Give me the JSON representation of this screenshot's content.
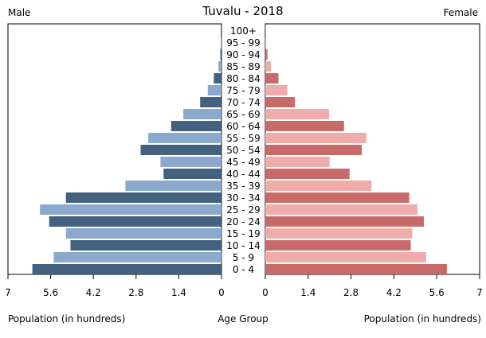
{
  "chart_data": {
    "type": "bar",
    "title": "Tuvalu - 2018",
    "male_label": "Male",
    "female_label": "Female",
    "center_label": "Age Group",
    "left_xlabel": "Population (in hundreds)",
    "right_xlabel": "Population (in hundreds)",
    "xlim": [
      0,
      7
    ],
    "ticks": [
      "7",
      "5.6",
      "4.2",
      "2.8",
      "1.4",
      "0",
      "0",
      "1.4",
      "2.8",
      "4.2",
      "5.6",
      "7"
    ],
    "tick_values": [
      7,
      5.6,
      4.2,
      2.8,
      1.4,
      0,
      0,
      1.4,
      2.8,
      4.2,
      5.6,
      7
    ],
    "categories": [
      "100+",
      "95 - 99",
      "90 - 94",
      "85 - 89",
      "80 - 84",
      "75 - 79",
      "70 - 74",
      "65 - 69",
      "60 - 64",
      "55 - 59",
      "50 - 54",
      "45 - 49",
      "40 - 44",
      "35 - 39",
      "30 - 34",
      "25 - 29",
      "20 - 24",
      "15 - 19",
      "10 - 14",
      "5 - 9",
      "0 - 4"
    ],
    "series": [
      {
        "name": "Male",
        "side": "left",
        "values": [
          0.02,
          0.02,
          0.04,
          0.1,
          0.25,
          0.45,
          0.7,
          1.25,
          1.65,
          2.4,
          2.65,
          2.0,
          1.9,
          3.15,
          5.1,
          5.95,
          5.65,
          5.1,
          4.95,
          5.5,
          6.2
        ]
      },
      {
        "name": "Female",
        "side": "right",
        "values": [
          0.02,
          0.03,
          0.07,
          0.18,
          0.43,
          0.72,
          0.97,
          2.08,
          2.57,
          3.3,
          3.15,
          2.1,
          2.75,
          3.47,
          4.7,
          4.97,
          5.18,
          4.8,
          4.75,
          5.25,
          5.93
        ]
      }
    ],
    "colors": {
      "male_dark": "#44617f",
      "male_light": "#8aa9cc",
      "female_dark": "#c86a6a",
      "female_light": "#f0abab",
      "axis": "#000000"
    },
    "legend": "none",
    "grid": false
  }
}
